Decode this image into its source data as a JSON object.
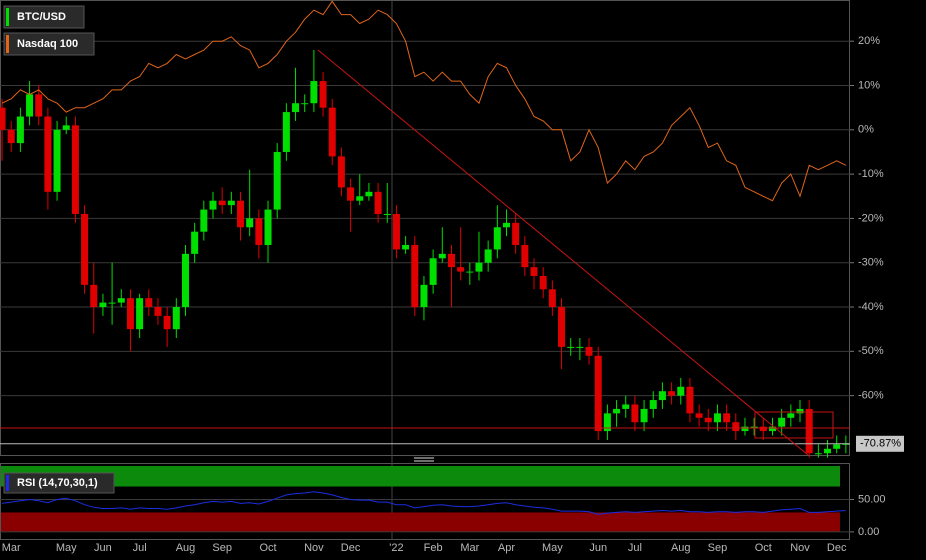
{
  "chart_data": [
    {
      "type": "candlestick",
      "categories": [
        null,
        "Mar",
        null,
        null,
        null,
        null,
        null,
        "May",
        null,
        null,
        null,
        "Jun",
        null,
        null,
        null,
        "Jul",
        null,
        null,
        null,
        null,
        "Aug",
        null,
        null,
        null,
        "Sep",
        null,
        null,
        null,
        null,
        "Oct",
        null,
        null,
        null,
        null,
        "Nov",
        null,
        null,
        null,
        "Dec",
        null,
        null,
        null,
        null,
        "'22",
        null,
        null,
        null,
        "Feb",
        null,
        null,
        null,
        "Mar",
        null,
        null,
        null,
        "Apr",
        null,
        null,
        null,
        null,
        "May",
        null,
        null,
        null,
        null,
        "Jun",
        null,
        null,
        null,
        "Jul",
        null,
        null,
        null,
        null,
        "Aug",
        null,
        null,
        null,
        "Sep",
        null,
        null,
        null,
        null,
        "Oct",
        null,
        null,
        null,
        "Nov",
        null,
        null,
        null,
        "Dec",
        null
      ],
      "series": [
        {
          "name": "BTC/USD",
          "color": "#00e000",
          "down_color": "#e00000",
          "open": [
            5,
            0,
            -3,
            3,
            8,
            3,
            -14,
            0,
            1,
            -19,
            -35,
            -40,
            -39,
            -39,
            -38,
            -45,
            -38,
            -40,
            -42,
            -45,
            -40,
            -28,
            -23,
            -18,
            -16,
            -17,
            -16,
            -22,
            -20,
            -26,
            -18,
            -5,
            4,
            6,
            6,
            11,
            5,
            -6,
            -13,
            -16,
            -15,
            -14,
            -19,
            -19,
            -27,
            -26,
            -40,
            -35,
            -29,
            -28,
            -31,
            -32,
            -32,
            -30,
            -27,
            -22,
            -21,
            -26,
            -31,
            -33,
            -36,
            -40,
            -49,
            -49,
            -49,
            -51,
            -68,
            -64,
            -63,
            -62,
            -66,
            -63,
            -61,
            -59,
            -60,
            -58,
            -64,
            -65,
            -66,
            -64,
            -66,
            -68,
            -67,
            -67,
            -68,
            -67,
            -65,
            -64,
            -63,
            -73,
            -73,
            -72,
            -71
          ],
          "high": [
            7,
            2,
            5,
            11,
            10,
            5,
            2,
            3,
            3,
            -17,
            -30,
            -37,
            -30,
            -36,
            -36,
            -37,
            -36,
            -38,
            -40,
            -38,
            -26,
            -21,
            -16,
            -14,
            -13,
            -14,
            -14,
            -9,
            -18,
            -16,
            -3,
            6,
            14,
            8,
            18,
            13,
            7,
            -4,
            -11,
            -10,
            -12,
            -12,
            -12,
            -17,
            -24,
            -24,
            -33,
            -27,
            -22,
            -26,
            -22,
            -30,
            -23,
            -25,
            -17,
            -18,
            -19,
            -24,
            -29,
            -31,
            -34,
            -38,
            -47,
            -47,
            -47,
            -49,
            -62,
            -61,
            -60,
            -60,
            -61,
            -59,
            -57,
            -57,
            -56,
            -56,
            -62,
            -63,
            -62,
            -62,
            -64,
            -65,
            -65,
            -65,
            -65,
            -63,
            -62,
            -61,
            -61,
            -71,
            -70,
            -69,
            -69
          ],
          "low": [
            -7,
            -5,
            -5,
            1,
            1,
            -18,
            -16,
            -1,
            -21,
            -37,
            -46,
            -42,
            -44,
            -40,
            -50,
            -47,
            -42,
            -44,
            -49,
            -47,
            -42,
            -30,
            -25,
            -20,
            -19,
            -19,
            -25,
            -24,
            -29,
            -30,
            -20,
            -7,
            2,
            4,
            4,
            3,
            -8,
            -15,
            -23,
            -17,
            -16,
            -21,
            -21,
            -29,
            -28,
            -42,
            -43,
            -37,
            -30,
            -40,
            -34,
            -35,
            -34,
            -32,
            -29,
            -24,
            -28,
            -33,
            -36,
            -38,
            -42,
            -54,
            -51,
            -52,
            -53,
            -70,
            -70,
            -67,
            -65,
            -68,
            -68,
            -65,
            -63,
            -62,
            -62,
            -66,
            -67,
            -68,
            -68,
            -68,
            -70,
            -69,
            -69,
            -70,
            -69,
            -69,
            -67,
            -66,
            -74,
            -74,
            -74,
            -73,
            -73
          ],
          "close": [
            0,
            -3,
            3,
            8,
            3,
            -14,
            0,
            1,
            -19,
            -35,
            -40,
            -39,
            -39,
            -38,
            -45,
            -38,
            -40,
            -42,
            -45,
            -40,
            -28,
            -23,
            -18,
            -16,
            -17,
            -16,
            -22,
            -20,
            -26,
            -18,
            -5,
            4,
            6,
            6,
            11,
            5,
            -6,
            -13,
            -16,
            -15,
            -14,
            -19,
            -19,
            -27,
            -26,
            -40,
            -35,
            -29,
            -28,
            -31,
            -32,
            -32,
            -30,
            -27,
            -22,
            -21,
            -26,
            -31,
            -33,
            -36,
            -40,
            -49,
            -49,
            -49,
            -51,
            -68,
            -64,
            -63,
            -62,
            -66,
            -63,
            -61,
            -59,
            -60,
            -58,
            -64,
            -65,
            -66,
            -64,
            -66,
            -68,
            -67,
            -67,
            -68,
            -67,
            -65,
            -64,
            -63,
            -73,
            -73,
            -72,
            -71,
            -70.87
          ]
        },
        {
          "name": "Nasdaq 100",
          "color": "#e0651a",
          "type": "line",
          "values": [
            6,
            7,
            9,
            8,
            9,
            7,
            6,
            4,
            5,
            5,
            6,
            7,
            9,
            9,
            11,
            12,
            15,
            14,
            15,
            17,
            16,
            17,
            18,
            20,
            20,
            21,
            19,
            18,
            14,
            15,
            17,
            20,
            22,
            25,
            27,
            26,
            29,
            26,
            26,
            24,
            25,
            27,
            26,
            24,
            20,
            12,
            13,
            11,
            13,
            11,
            11,
            8,
            6,
            12,
            15,
            14,
            10,
            7,
            3,
            2,
            0,
            0,
            -7,
            -5,
            0,
            -4,
            -12,
            -10,
            -7,
            -9,
            -6,
            -5,
            -3,
            1,
            3,
            5,
            1,
            -4,
            -3,
            -7,
            -8,
            -13,
            -14,
            -15,
            -16,
            -12,
            -10,
            -15,
            -8,
            -9,
            -8,
            -7,
            -8
          ]
        }
      ],
      "last_price": {
        "value": -70.87,
        "label": "-70.87%"
      },
      "ylim": [
        -73.4,
        29.3
      ],
      "yticks": [
        {
          "value": 20,
          "label": "20%"
        },
        {
          "value": 10,
          "label": "10%"
        },
        {
          "value": 0,
          "label": "0%"
        },
        {
          "value": -10,
          "label": "-10%"
        },
        {
          "value": -20,
          "label": "-20%"
        },
        {
          "value": -30,
          "label": "-30%"
        },
        {
          "value": -40,
          "label": "-40%"
        },
        {
          "value": -50,
          "label": "-50%"
        },
        {
          "value": -60,
          "label": "-60%"
        }
      ],
      "grid": true
    },
    {
      "type": "line",
      "title": "RSI (14,70,30,1)",
      "color": "#1a2ee0",
      "overbought": 70,
      "oversold": 30,
      "overbought_color": "#0b8a0b",
      "oversold_color": "#8a0000",
      "values": [
        44,
        46,
        48,
        50,
        48,
        45,
        50,
        52,
        48,
        42,
        38,
        36,
        36,
        37,
        35,
        37,
        36,
        36,
        35,
        37,
        40,
        42,
        45,
        47,
        46,
        47,
        44,
        45,
        43,
        47,
        52,
        57,
        59,
        60,
        62,
        60,
        57,
        53,
        50,
        49,
        49,
        46,
        46,
        42,
        42,
        37,
        39,
        41,
        42,
        40,
        39,
        39,
        40,
        42,
        44,
        45,
        42,
        40,
        38,
        37,
        35,
        32,
        32,
        32,
        31,
        27,
        29,
        30,
        31,
        30,
        31,
        32,
        33,
        32,
        33,
        31,
        31,
        30,
        31,
        31,
        30,
        31,
        31,
        30,
        32,
        34,
        35,
        36,
        30,
        30,
        31,
        32,
        33
      ],
      "ylim": [
        -12.5,
        104.7
      ],
      "yticks": [
        {
          "value": 50,
          "label": "50.00"
        },
        {
          "value": 0,
          "label": "0.00"
        }
      ]
    }
  ]
}
